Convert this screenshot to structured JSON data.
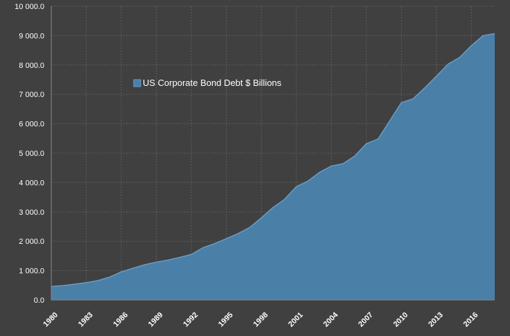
{
  "chart_data": {
    "type": "area",
    "title": "",
    "xlabel": "",
    "ylabel": "",
    "x": [
      1980,
      1981,
      1982,
      1983,
      1984,
      1985,
      1986,
      1987,
      1988,
      1989,
      1990,
      1991,
      1992,
      1993,
      1994,
      1995,
      1996,
      1997,
      1998,
      1999,
      2000,
      2001,
      2002,
      2003,
      2004,
      2005,
      2006,
      2007,
      2008,
      2009,
      2010,
      2011,
      2012,
      2013,
      2014,
      2015,
      2016,
      2017,
      2018
    ],
    "x_tick_labels": [
      "1980",
      "1983",
      "1986",
      "1989",
      "1992",
      "1995",
      "1998",
      "2001",
      "2004",
      "2007",
      "2010",
      "2013",
      "2016"
    ],
    "xlim": [
      1980,
      2018
    ],
    "ylim": [
      0,
      10000
    ],
    "y_tick_labels": [
      "0.0",
      "1 000.0",
      "2 000.0",
      "3 000.0",
      "4 000.0",
      "5 000.0",
      "6 000.0",
      "7 000.0",
      "8 000.0",
      "9 000.0",
      "10 000.0"
    ],
    "grid": true,
    "legend_position": "top-left",
    "series": [
      {
        "name": "US Corporate Bond Debt $ Billions",
        "color": "#4a7fa8",
        "line_color": "#6a9cc4",
        "values": [
          460,
          490,
          540,
          590,
          660,
          780,
          960,
          1080,
          1200,
          1290,
          1360,
          1450,
          1550,
          1780,
          1920,
          2090,
          2260,
          2470,
          2800,
          3150,
          3430,
          3860,
          4050,
          4350,
          4560,
          4640,
          4900,
          5320,
          5480,
          6100,
          6720,
          6850,
          7220,
          7620,
          8030,
          8260,
          8660,
          9000,
          9070
        ]
      }
    ]
  },
  "colors": {
    "background": "#404040",
    "grid": "#5e5e5e",
    "axis": "#8a8a8a",
    "text": "#ffffff"
  }
}
